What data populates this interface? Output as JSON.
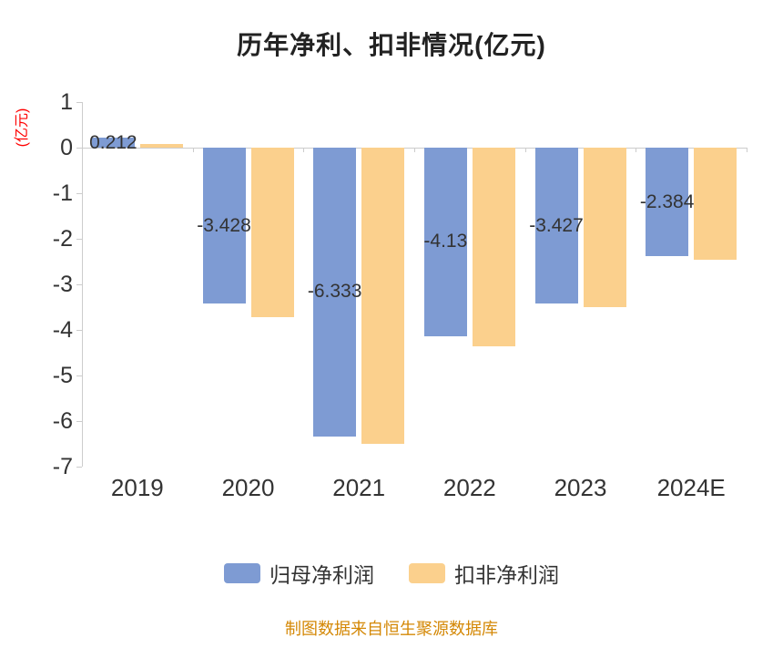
{
  "title": "历年净利、扣非情况(亿元)",
  "y_axis_unit": "(亿元)",
  "footer": "制图数据来自恒生聚源数据库",
  "colors": {
    "series1": "#7E9BD3",
    "series2": "#FBD08D",
    "axis_unit": "#FF0000",
    "footer": "#D48806",
    "text": "#333333",
    "axis_line": "#CCCCCC",
    "title": "#222222"
  },
  "legend": {
    "items": [
      {
        "label": "归母净利润",
        "color_key": "series1"
      },
      {
        "label": "扣非净利润",
        "color_key": "series2"
      }
    ]
  },
  "chart_data": {
    "type": "bar",
    "title": "历年净利、扣非情况(亿元)",
    "ylabel": "(亿元)",
    "xlabel": "",
    "categories": [
      "2019",
      "2020",
      "2021",
      "2022",
      "2023",
      "2024E"
    ],
    "series": [
      {
        "name": "归母净利润",
        "color_key": "series1",
        "values": [
          0.212,
          -3.428,
          -6.333,
          -4.13,
          -3.427,
          -2.384
        ],
        "data_labels": [
          "0.212",
          "-3.428",
          "-6.333",
          "-4.13",
          "-3.427",
          "-2.384"
        ]
      },
      {
        "name": "扣非净利润",
        "color_key": "series2",
        "values": [
          0.09,
          -3.72,
          -6.5,
          -4.36,
          -3.5,
          -2.45
        ],
        "data_labels": []
      }
    ],
    "ylim": [
      -7,
      1
    ],
    "yticks": [
      1,
      0,
      -1,
      -2,
      -3,
      -4,
      -5,
      -6,
      -7
    ],
    "grid": "off",
    "legend_position": "bottom"
  }
}
